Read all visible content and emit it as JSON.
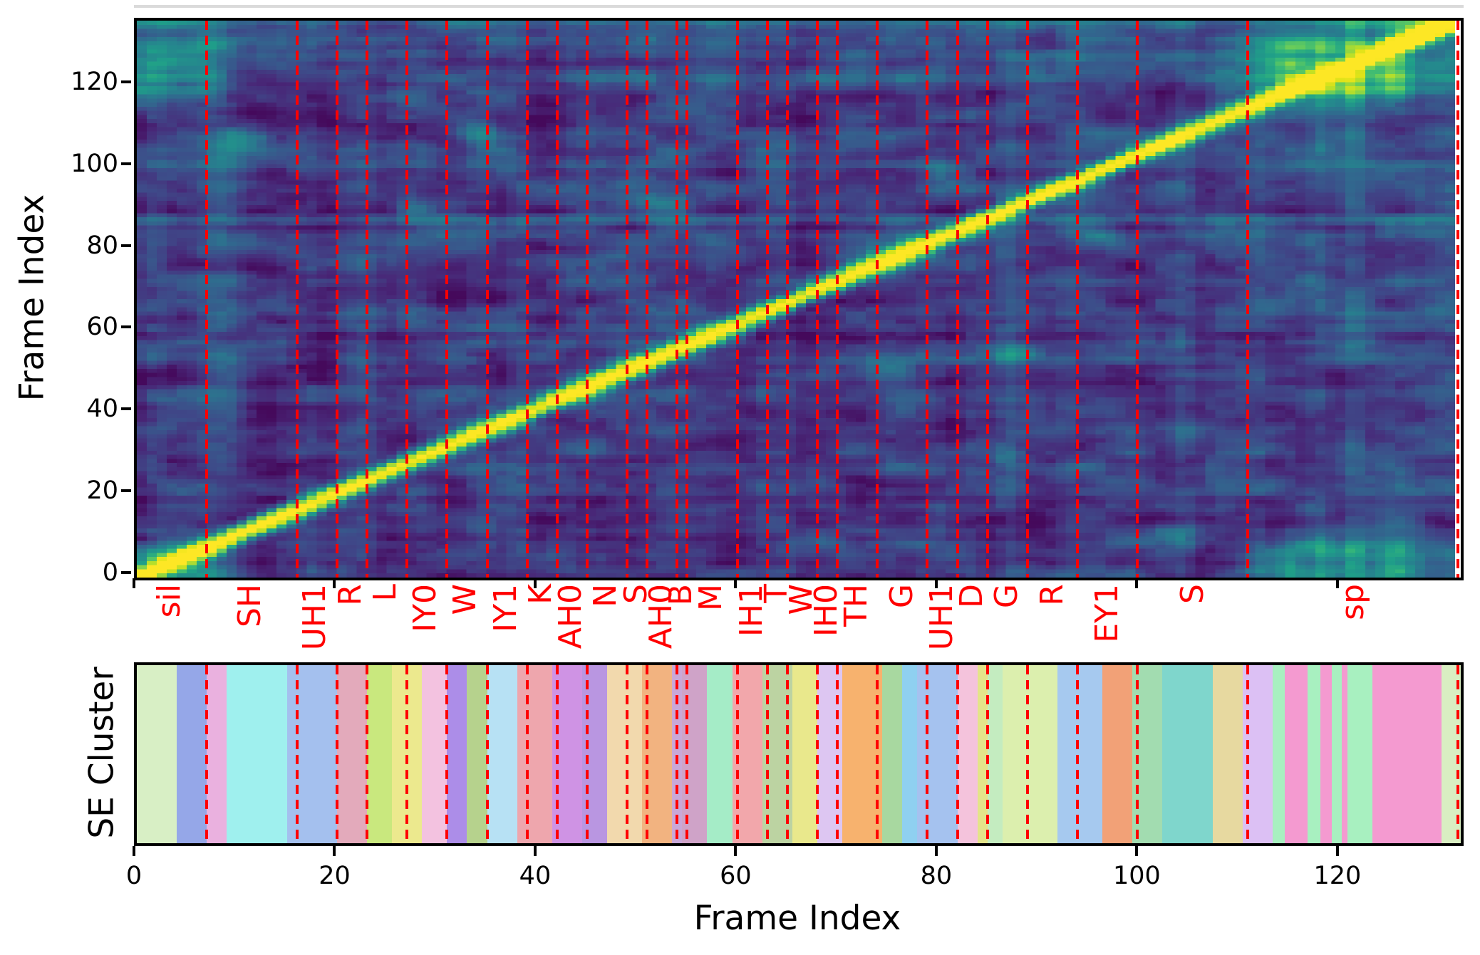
{
  "style": {
    "background": "#ffffff",
    "spine_color": "#000000",
    "text_color": "#000000",
    "boundary_color": "#ff0000",
    "phoneme_label_color": "#ff0000",
    "colormap": "viridis"
  },
  "chart_data": {
    "type": "heatmap",
    "title": "",
    "xlabel": "Frame Index",
    "ylabel": "Frame Index",
    "cluster_ylabel": "SE Cluster",
    "x_range": [
      0,
      132.3
    ],
    "y_range": [
      0,
      135.7
    ],
    "xticks": [
      0,
      20,
      40,
      60,
      80,
      100,
      120
    ],
    "yticks": [
      0,
      20,
      40,
      60,
      80,
      100,
      120
    ],
    "colormap": "viridis",
    "legend": "none",
    "grid": false,
    "description": "Frame-to-frame self-similarity matrix (viridis) with bright main diagonal, silence/sp cross-hatch block in upper right, red dashed phoneme boundaries, and an SE Cluster segmentation strip below sharing the same frame axis.",
    "phoneme_segments": [
      {
        "label": "sil",
        "start": 0,
        "end": 7
      },
      {
        "label": "SH",
        "start": 7,
        "end": 16
      },
      {
        "label": "UH1",
        "start": 16,
        "end": 20
      },
      {
        "label": "R",
        "start": 20,
        "end": 23
      },
      {
        "label": "L",
        "start": 23,
        "end": 27
      },
      {
        "label": "IY0",
        "start": 27,
        "end": 31
      },
      {
        "label": "W",
        "start": 31,
        "end": 35
      },
      {
        "label": "IY1",
        "start": 35,
        "end": 39
      },
      {
        "label": "K",
        "start": 39,
        "end": 42
      },
      {
        "label": "AH0",
        "start": 42,
        "end": 45
      },
      {
        "label": "N",
        "start": 45,
        "end": 49
      },
      {
        "label": "S",
        "start": 49,
        "end": 51
      },
      {
        "label": "AH0",
        "start": 51,
        "end": 54
      },
      {
        "label": "B",
        "start": 54,
        "end": 55
      },
      {
        "label": "M",
        "start": 55,
        "end": 60
      },
      {
        "label": "IH1",
        "start": 60,
        "end": 63
      },
      {
        "label": "T",
        "start": 63,
        "end": 65
      },
      {
        "label": "W",
        "start": 65,
        "end": 68
      },
      {
        "label": "IH0",
        "start": 68,
        "end": 70
      },
      {
        "label": "TH",
        "start": 70,
        "end": 74
      },
      {
        "label": "G",
        "start": 74,
        "end": 79
      },
      {
        "label": "UH1",
        "start": 79,
        "end": 82
      },
      {
        "label": "D",
        "start": 82,
        "end": 85
      },
      {
        "label": "G",
        "start": 85,
        "end": 89
      },
      {
        "label": "R",
        "start": 89,
        "end": 94
      },
      {
        "label": "EY1",
        "start": 94,
        "end": 100
      },
      {
        "label": "S",
        "start": 100,
        "end": 111
      },
      {
        "label": "sp",
        "start": 111,
        "end": 132
      }
    ],
    "se_cluster_segments": [
      {
        "start": 0,
        "end": 4,
        "color": "#d8efc5"
      },
      {
        "start": 4,
        "end": 7,
        "color": "#95a7e8"
      },
      {
        "start": 7,
        "end": 9,
        "color": "#eab1df"
      },
      {
        "start": 9,
        "end": 15,
        "color": "#9ff0ee"
      },
      {
        "start": 15,
        "end": 20,
        "color": "#a4c0ee"
      },
      {
        "start": 20,
        "end": 23,
        "color": "#e3aabb"
      },
      {
        "start": 23,
        "end": 25.5,
        "color": "#c9e87e"
      },
      {
        "start": 25.5,
        "end": 28.5,
        "color": "#ece98e"
      },
      {
        "start": 28.5,
        "end": 31,
        "color": "#f3c2e0"
      },
      {
        "start": 31,
        "end": 33,
        "color": "#ac8de8"
      },
      {
        "start": 33,
        "end": 35,
        "color": "#b6d28d"
      },
      {
        "start": 35,
        "end": 38,
        "color": "#b7e1f4"
      },
      {
        "start": 38,
        "end": 41.5,
        "color": "#eea6ad"
      },
      {
        "start": 41.5,
        "end": 44.5,
        "color": "#cf93e4"
      },
      {
        "start": 44.5,
        "end": 47,
        "color": "#b996e1"
      },
      {
        "start": 47,
        "end": 50.5,
        "color": "#f2d9ad"
      },
      {
        "start": 50.5,
        "end": 53.5,
        "color": "#f2b380"
      },
      {
        "start": 53.5,
        "end": 54.5,
        "color": "#c9a8d8"
      },
      {
        "start": 54.5,
        "end": 57,
        "color": "#cfa3c8"
      },
      {
        "start": 57,
        "end": 59.5,
        "color": "#a5ecc7"
      },
      {
        "start": 59.5,
        "end": 62.5,
        "color": "#f2a7ab"
      },
      {
        "start": 62.5,
        "end": 65.5,
        "color": "#bcd3a2"
      },
      {
        "start": 65.5,
        "end": 68,
        "color": "#e9e88c"
      },
      {
        "start": 68,
        "end": 70.5,
        "color": "#ddc6f2"
      },
      {
        "start": 70.5,
        "end": 74.5,
        "color": "#f7b26e"
      },
      {
        "start": 74.5,
        "end": 76.5,
        "color": "#a8d8a0"
      },
      {
        "start": 76.5,
        "end": 78,
        "color": "#8fd0f0"
      },
      {
        "start": 78,
        "end": 82,
        "color": "#a5c2ef"
      },
      {
        "start": 82,
        "end": 84,
        "color": "#f4c3dc"
      },
      {
        "start": 84,
        "end": 85,
        "color": "#e4e48a"
      },
      {
        "start": 85,
        "end": 86.5,
        "color": "#c4ecc0"
      },
      {
        "start": 86.5,
        "end": 92,
        "color": "#dcefae"
      },
      {
        "start": 92,
        "end": 96.5,
        "color": "#a6c9ef"
      },
      {
        "start": 96.5,
        "end": 99.5,
        "color": "#f2a177"
      },
      {
        "start": 99.5,
        "end": 102.5,
        "color": "#a2dcb0"
      },
      {
        "start": 102.5,
        "end": 107.5,
        "color": "#7fd6cc"
      },
      {
        "start": 107.5,
        "end": 110.5,
        "color": "#e7d9a0"
      },
      {
        "start": 110.5,
        "end": 113.5,
        "color": "#dcc0f4"
      },
      {
        "start": 113.5,
        "end": 114.7,
        "color": "#a8f0c0"
      },
      {
        "start": 114.7,
        "end": 117,
        "color": "#f49ad0"
      },
      {
        "start": 117,
        "end": 118.3,
        "color": "#a8f0c0"
      },
      {
        "start": 118.3,
        "end": 119.4,
        "color": "#f49ad0"
      },
      {
        "start": 119.4,
        "end": 120.4,
        "color": "#a8f0c0"
      },
      {
        "start": 120.4,
        "end": 121,
        "color": "#f49ad0"
      },
      {
        "start": 121,
        "end": 123.5,
        "color": "#a8f0c0"
      },
      {
        "start": 123.5,
        "end": 130.4,
        "color": "#f49ad0"
      },
      {
        "start": 130.4,
        "end": 132.3,
        "color": "#d9eec2"
      }
    ],
    "heatmap_model": {
      "cols": 132,
      "rows": 136,
      "x_extent": 131.7,
      "y_extent": 135.7,
      "seed": 4.7,
      "base": 0.16,
      "noise": {
        "large": 0.1,
        "fine": 0.055,
        "row": 0.07,
        "col": 0.05
      },
      "diag": {
        "amp": 0.92,
        "sigma": 1.55
      },
      "sil": {
        "end": 6,
        "fade": 7
      },
      "sp": {
        "start": 113,
        "fade": 9,
        "band_centers": [
          115.5,
          118.5,
          121.5,
          125.5
        ],
        "band_sigma": 1.3,
        "plaid_amp": 0.52,
        "cross_amp": 0.27,
        "sil_block_amp": 0.2,
        "glow_amp": 0.05
      },
      "corner": {
        "start": 123,
        "amp": 0.38,
        "sigma": 2.6
      },
      "top_edge": {
        "amp": 0.2,
        "sigma": 1.5
      },
      "row_streaks": [
        [
          87,
          0.1
        ],
        [
          8.5,
          0.07
        ],
        [
          100.5,
          0.07
        ]
      ],
      "blobs": [
        [
          10.5,
          104,
          2.2,
          0.3
        ],
        [
          34,
          105.5,
          1.8,
          0.26
        ],
        [
          53,
          88,
          1.8,
          0.24
        ],
        [
          75,
          49,
          2.0,
          0.2
        ],
        [
          96,
          80,
          1.8,
          0.16
        ],
        [
          28,
          87,
          1.5,
          0.14
        ]
      ],
      "viridis_anchors": [
        "#440154",
        "#482878",
        "#3e4a89",
        "#31688e",
        "#26828e",
        "#1f9e89",
        "#35b779",
        "#6ece58",
        "#b5de2b",
        "#dfe318",
        "#fde725"
      ]
    }
  }
}
